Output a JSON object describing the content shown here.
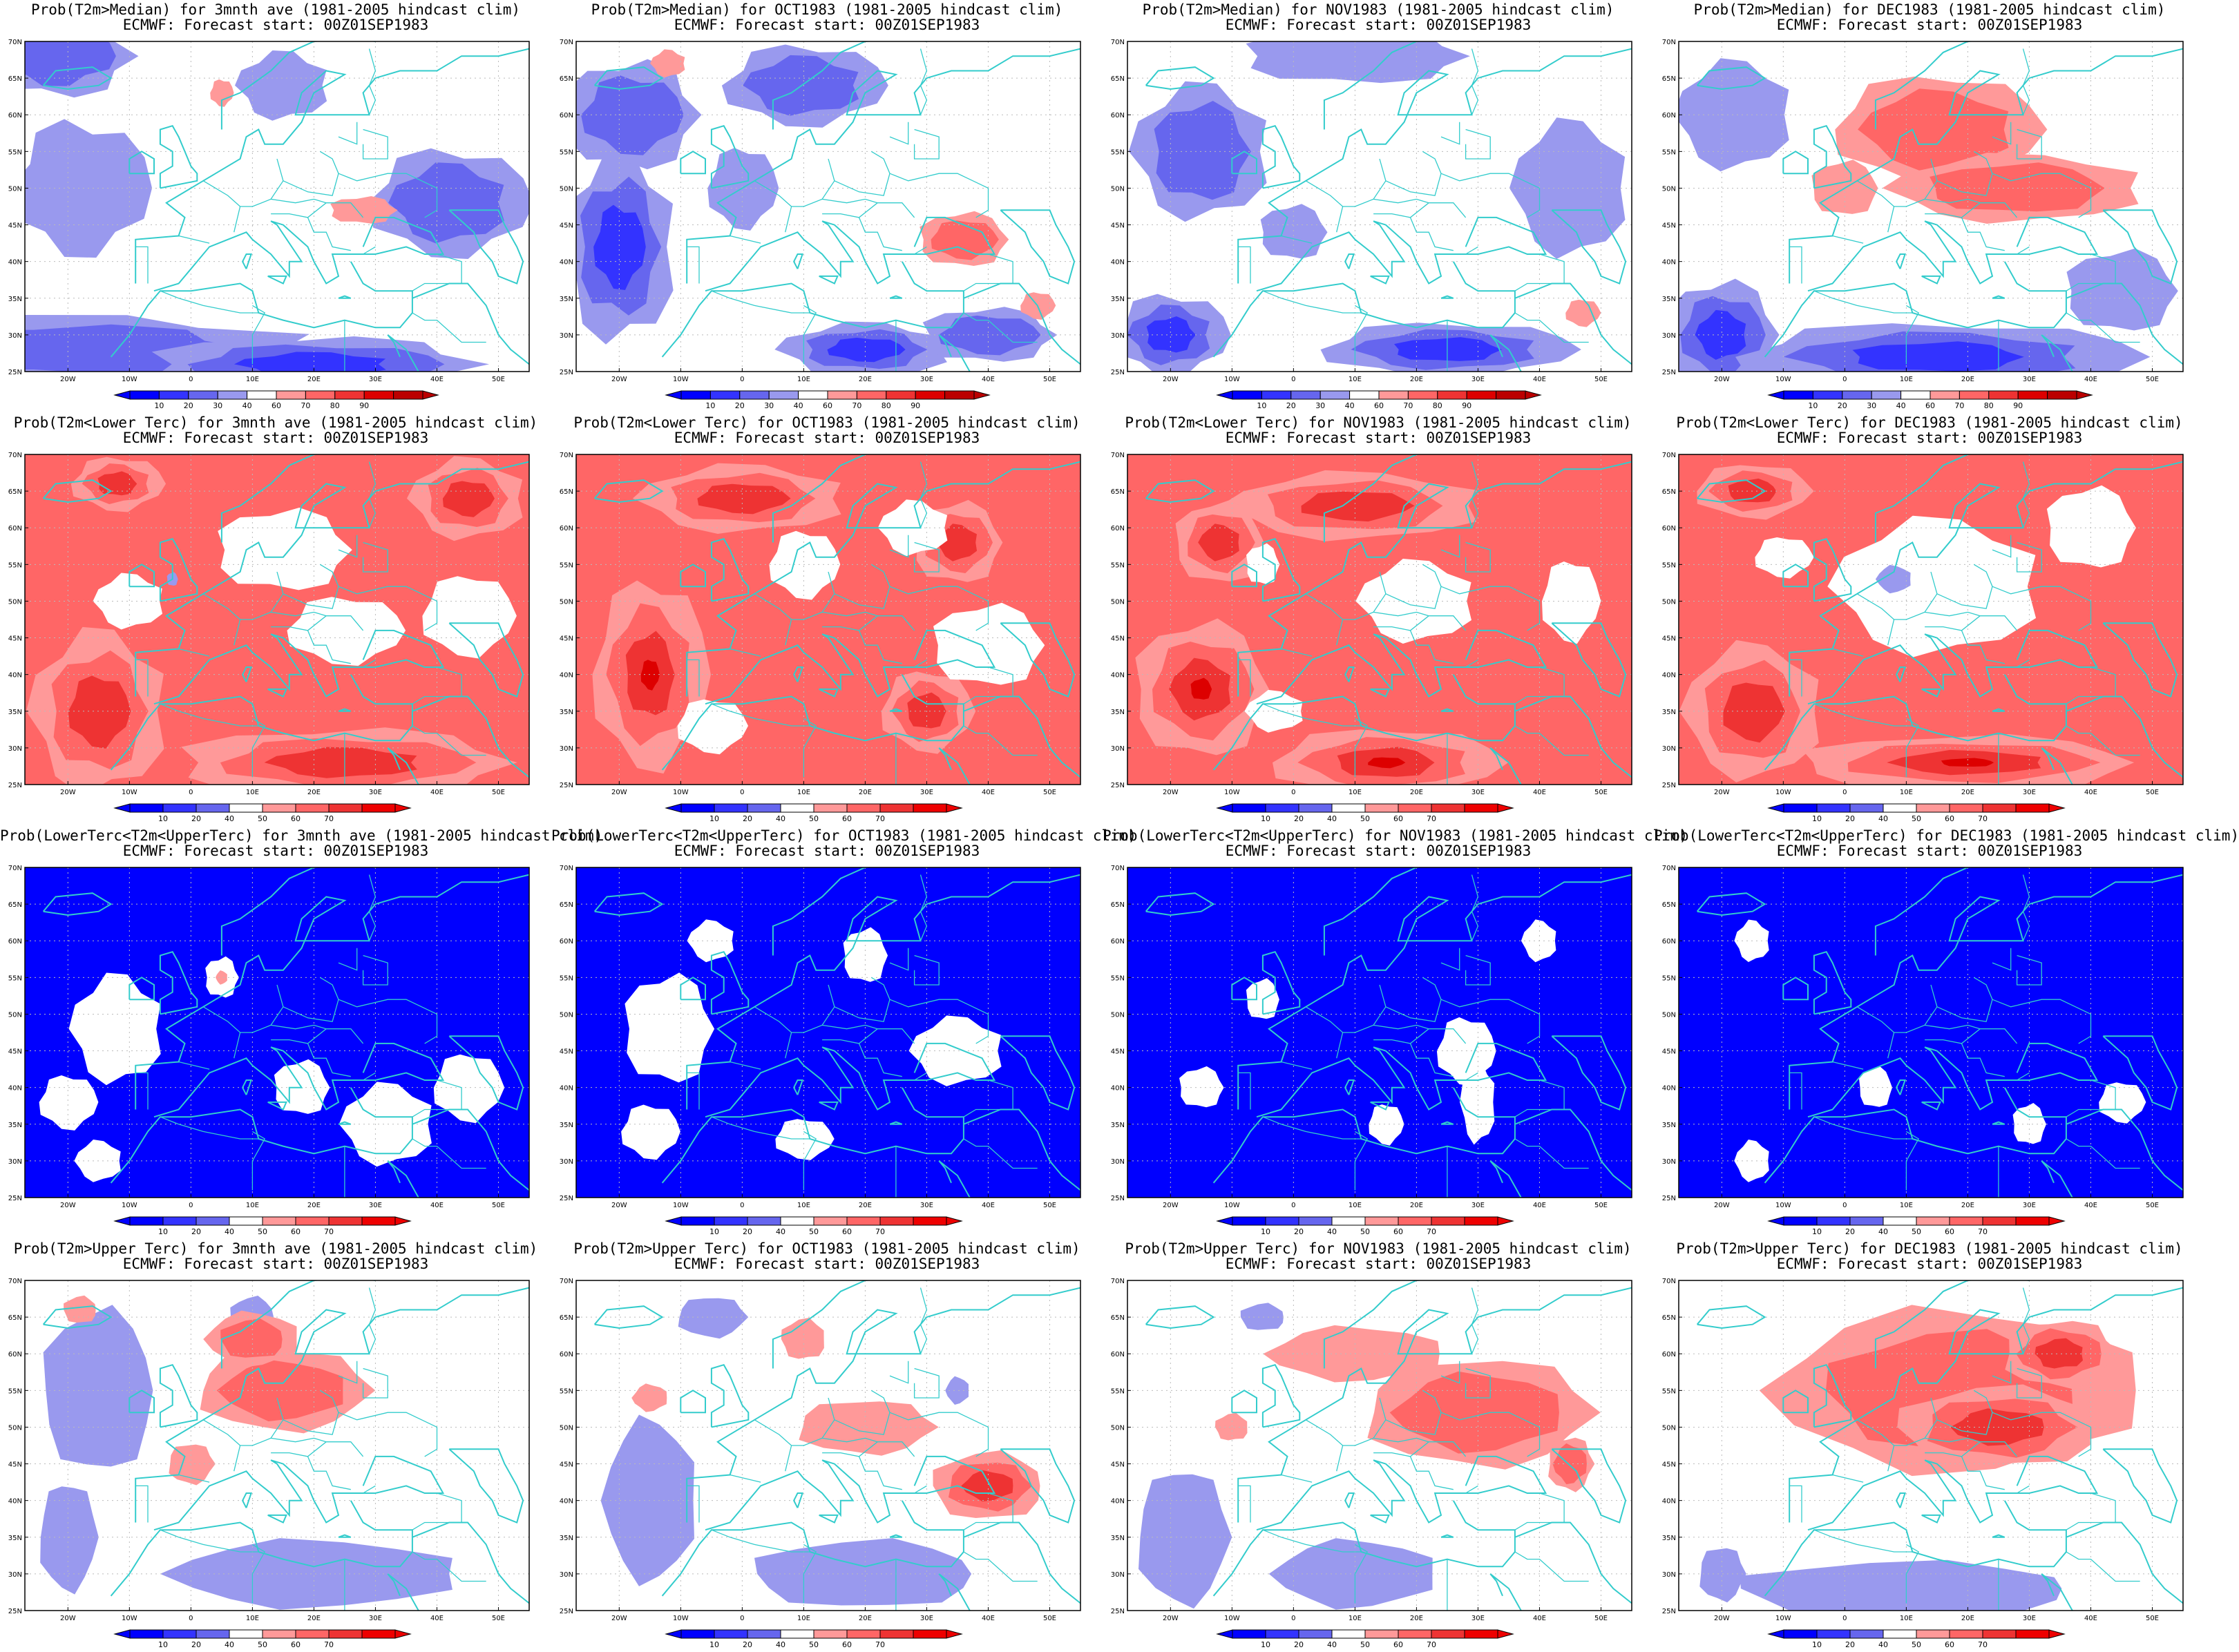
{
  "forecast_line": "ECMWF: Forecast start: 00Z01SEP1983",
  "lat_labels": [
    "70N",
    "65N",
    "60N",
    "55N",
    "50N",
    "45N",
    "40N",
    "35N",
    "30N",
    "25N"
  ],
  "lon_labels": [
    "20W",
    "10W",
    "0",
    "10E",
    "20E",
    "30E",
    "40E",
    "50E"
  ],
  "colorbar_median": [
    "10",
    "20",
    "30",
    "40",
    "60",
    "70",
    "80",
    "90"
  ],
  "colorbar_tercile": [
    "10",
    "20",
    "40",
    "50",
    "60",
    "70"
  ],
  "colors": {
    "blue_levels": [
      "#0000ff",
      "#3333ff",
      "#6666ee",
      "#9999ee"
    ],
    "red_levels": [
      "#ff9999",
      "#ff6666",
      "#ee3333",
      "#dd0000"
    ],
    "coastline": "#33cccc",
    "grid": "#bbbbbb"
  },
  "rows": [
    {
      "type": "median",
      "titles": [
        "Prob(T2m>Median) for 3mnth ave (1981-2005 hindcast clim)",
        "Prob(T2m>Median) for OCT1983 (1981-2005 hindcast clim)",
        "Prob(T2m>Median) for NOV1983 (1981-2005 hindcast clim)",
        "Prob(T2m>Median) for DEC1983 (1981-2005 hindcast clim)"
      ]
    },
    {
      "type": "tercile",
      "titles": [
        "Prob(T2m<Lower Terc) for 3mnth ave (1981-2005 hindcast clim)",
        "Prob(T2m<Lower Terc) for OCT1983 (1981-2005 hindcast clim)",
        "Prob(T2m<Lower Terc) for NOV1983 (1981-2005 hindcast clim)",
        "Prob(T2m<Lower Terc) for DEC1983 (1981-2005 hindcast clim)"
      ]
    },
    {
      "type": "tercile",
      "titles": [
        "Prob(LowerTerc<T2m<UpperTerc) for 3mnth ave (1981-2005 hindcast clim)",
        "Prob(LowerTerc<T2m<UpperTerc) for OCT1983 (1981-2005 hindcast clim)",
        "Prob(LowerTerc<T2m<UpperTerc) for NOV1983 (1981-2005 hindcast clim)",
        "Prob(LowerTerc<T2m<UpperTerc) for DEC1983 (1981-2005 hindcast clim)"
      ]
    },
    {
      "type": "tercile",
      "titles": [
        "Prob(T2m>Upper Terc) for 3mnth ave (1981-2005 hindcast clim)",
        "Prob(T2m>Upper Terc) for OCT1983 (1981-2005 hindcast clim)",
        "Prob(T2m>Upper Terc) for NOV1983 (1981-2005 hindcast clim)",
        "Prob(T2m>Upper Terc) for DEC1983 (1981-2005 hindcast clim)"
      ]
    }
  ],
  "fields": [
    [
      {
        "base": "white",
        "blobs": [
          [
            "blue",
            -22,
            68,
            14,
            6,
            2
          ],
          [
            "blue",
            -18,
            50,
            12,
            10,
            1
          ],
          [
            "blue",
            -20,
            28,
            45,
            5,
            2
          ],
          [
            "blue",
            20,
            26,
            30,
            4,
            3
          ],
          [
            "blue",
            42,
            48,
            14,
            8,
            2
          ],
          [
            "blue",
            15,
            64,
            8,
            5,
            1
          ],
          [
            "red",
            28,
            47,
            6,
            2,
            1
          ],
          [
            "red",
            5,
            63,
            2,
            2,
            1
          ]
        ]
      },
      {
        "base": "white",
        "blobs": [
          [
            "blue",
            -20,
            42,
            10,
            14,
            3
          ],
          [
            "blue",
            -18,
            60,
            12,
            8,
            2
          ],
          [
            "blue",
            10,
            64,
            14,
            6,
            2
          ],
          [
            "blue",
            20,
            28,
            15,
            4,
            3
          ],
          [
            "blue",
            40,
            30,
            12,
            4,
            2
          ],
          [
            "blue",
            0,
            50,
            6,
            6,
            1
          ],
          [
            "red",
            -12,
            67,
            3,
            2,
            1
          ],
          [
            "red",
            36,
            43,
            8,
            4,
            2
          ],
          [
            "red",
            48,
            34,
            3,
            2,
            1
          ]
        ]
      },
      {
        "base": "white",
        "blobs": [
          [
            "blue",
            -20,
            30,
            10,
            6,
            3
          ],
          [
            "blue",
            -15,
            55,
            12,
            10,
            2
          ],
          [
            "blue",
            10,
            68,
            20,
            4,
            1
          ],
          [
            "blue",
            25,
            28,
            22,
            4,
            3
          ],
          [
            "blue",
            45,
            50,
            10,
            10,
            1
          ],
          [
            "blue",
            0,
            44,
            6,
            4,
            1
          ],
          [
            "red",
            47,
            33,
            3,
            2,
            1
          ]
        ]
      },
      {
        "base": "white",
        "blobs": [
          [
            "blue",
            -20,
            30,
            10,
            8,
            3
          ],
          [
            "blue",
            15,
            27,
            35,
            5,
            3
          ],
          [
            "blue",
            -18,
            60,
            10,
            8,
            1
          ],
          [
            "blue",
            45,
            36,
            10,
            6,
            1
          ],
          [
            "red",
            15,
            58,
            18,
            8,
            2
          ],
          [
            "red",
            28,
            50,
            22,
            5,
            2
          ],
          [
            "red",
            0,
            50,
            6,
            4,
            1
          ]
        ]
      }
    ],
    [
      {
        "base": "red2",
        "blobs": [
          [
            "red",
            -15,
            35,
            12,
            12,
            3
          ],
          [
            "red",
            25,
            28,
            30,
            5,
            3
          ],
          [
            "red",
            -12,
            66,
            8,
            4,
            3
          ],
          [
            "red",
            45,
            64,
            10,
            6,
            3
          ],
          [
            "white",
            15,
            57,
            12,
            6,
            0
          ],
          [
            "white",
            25,
            46,
            10,
            5,
            0
          ],
          [
            "white",
            -10,
            50,
            6,
            4,
            0
          ],
          [
            "blue",
            -3,
            53,
            1,
            1,
            1
          ],
          [
            "white",
            45,
            48,
            8,
            6,
            0
          ]
        ]
      },
      {
        "base": "red2",
        "blobs": [
          [
            "red",
            -15,
            40,
            10,
            14,
            4
          ],
          [
            "red",
            0,
            64,
            18,
            5,
            3
          ],
          [
            "red",
            35,
            58,
            8,
            6,
            3
          ],
          [
            "red",
            30,
            35,
            8,
            6,
            3
          ],
          [
            "white",
            10,
            55,
            6,
            5,
            0
          ],
          [
            "white",
            28,
            60,
            6,
            4,
            0
          ],
          [
            "white",
            40,
            44,
            10,
            6,
            0
          ],
          [
            "white",
            -5,
            33,
            6,
            4,
            0
          ]
        ]
      },
      {
        "base": "red2",
        "blobs": [
          [
            "red",
            -15,
            38,
            12,
            10,
            4
          ],
          [
            "red",
            15,
            28,
            20,
            5,
            4
          ],
          [
            "red",
            10,
            63,
            22,
            5,
            3
          ],
          [
            "red",
            -12,
            58,
            8,
            6,
            3
          ],
          [
            "white",
            20,
            50,
            10,
            6,
            0
          ],
          [
            "white",
            -5,
            55,
            3,
            3,
            0
          ],
          [
            "white",
            45,
            50,
            5,
            6,
            0
          ],
          [
            "white",
            -3,
            35,
            5,
            3,
            0
          ]
        ]
      },
      {
        "base": "red2",
        "blobs": [
          [
            "red",
            -15,
            35,
            12,
            10,
            3
          ],
          [
            "red",
            20,
            28,
            30,
            4,
            4
          ],
          [
            "red",
            -15,
            65,
            10,
            4,
            3
          ],
          [
            "white",
            15,
            52,
            18,
            10,
            0
          ],
          [
            "white",
            40,
            60,
            8,
            6,
            0
          ],
          [
            "white",
            -10,
            56,
            5,
            3,
            0
          ],
          [
            "blue",
            8,
            53,
            3,
            2,
            1
          ]
        ]
      }
    ],
    [
      {
        "base": "blue",
        "blobs": [
          [
            "white",
            -12,
            48,
            8,
            8,
            0
          ],
          [
            "white",
            5,
            55,
            3,
            3,
            0
          ],
          [
            "white",
            -20,
            38,
            5,
            4,
            0
          ],
          [
            "white",
            32,
            35,
            8,
            6,
            0
          ],
          [
            "white",
            18,
            40,
            5,
            4,
            0
          ],
          [
            "white",
            45,
            40,
            6,
            5,
            0
          ],
          [
            "white",
            -15,
            30,
            4,
            3,
            0
          ],
          [
            "red",
            5,
            55,
            1,
            1,
            1
          ]
        ]
      },
      {
        "base": "blue",
        "blobs": [
          [
            "white",
            -12,
            48,
            8,
            8,
            0
          ],
          [
            "white",
            -15,
            34,
            5,
            4,
            0
          ],
          [
            "white",
            35,
            45,
            8,
            5,
            0
          ],
          [
            "white",
            20,
            58,
            4,
            4,
            0
          ],
          [
            "white",
            10,
            33,
            5,
            3,
            0
          ],
          [
            "white",
            -5,
            60,
            4,
            3,
            0
          ]
        ]
      },
      {
        "base": "blue",
        "blobs": [
          [
            "white",
            28,
            45,
            5,
            5,
            0
          ],
          [
            "white",
            30,
            38,
            3,
            6,
            0
          ],
          [
            "white",
            -15,
            40,
            4,
            3,
            0
          ],
          [
            "white",
            15,
            35,
            3,
            3,
            0
          ],
          [
            "white",
            40,
            60,
            3,
            3,
            0
          ],
          [
            "white",
            -5,
            52,
            3,
            3,
            0
          ]
        ]
      },
      {
        "base": "blue",
        "blobs": [
          [
            "white",
            -15,
            60,
            3,
            3,
            0
          ],
          [
            "white",
            30,
            35,
            3,
            3,
            0
          ],
          [
            "white",
            45,
            38,
            4,
            3,
            0
          ],
          [
            "white",
            -15,
            30,
            3,
            3,
            0
          ],
          [
            "white",
            5,
            40,
            3,
            3,
            0
          ]
        ]
      }
    ],
    [
      {
        "base": "white",
        "blobs": [
          [
            "blue",
            -15,
            55,
            10,
            12,
            1
          ],
          [
            "blue",
            -20,
            35,
            5,
            8,
            1
          ],
          [
            "blue",
            20,
            30,
            25,
            5,
            1
          ],
          [
            "blue",
            10,
            65,
            4,
            3,
            1
          ],
          [
            "red",
            15,
            55,
            15,
            6,
            2
          ],
          [
            "red",
            10,
            62,
            8,
            4,
            2
          ],
          [
            "red",
            -18,
            66,
            3,
            2,
            1
          ],
          [
            "red",
            0,
            45,
            4,
            3,
            1
          ]
        ]
      },
      {
        "base": "white",
        "blobs": [
          [
            "blue",
            -15,
            40,
            8,
            12,
            1
          ],
          [
            "blue",
            20,
            30,
            20,
            5,
            1
          ],
          [
            "blue",
            -5,
            65,
            6,
            3,
            1
          ],
          [
            "blue",
            35,
            55,
            2,
            2,
            1
          ],
          [
            "red",
            40,
            42,
            10,
            5,
            3
          ],
          [
            "red",
            20,
            50,
            12,
            4,
            1
          ],
          [
            "red",
            -15,
            54,
            3,
            2,
            1
          ],
          [
            "red",
            10,
            62,
            4,
            3,
            1
          ]
        ]
      },
      {
        "base": "white",
        "blobs": [
          [
            "blue",
            -18,
            35,
            8,
            10,
            1
          ],
          [
            "blue",
            10,
            30,
            14,
            5,
            1
          ],
          [
            "blue",
            -5,
            65,
            4,
            2,
            1
          ],
          [
            "red",
            30,
            52,
            20,
            8,
            2
          ],
          [
            "red",
            10,
            60,
            15,
            4,
            1
          ],
          [
            "red",
            -10,
            50,
            3,
            2,
            1
          ],
          [
            "red",
            45,
            45,
            4,
            4,
            2
          ]
        ]
      },
      {
        "base": "white",
        "blobs": [
          [
            "blue",
            10,
            28,
            30,
            4,
            1
          ],
          [
            "blue",
            -20,
            30,
            4,
            4,
            1
          ],
          [
            "red",
            18,
            55,
            32,
            12,
            2
          ],
          [
            "red",
            25,
            50,
            18,
            6,
            3
          ],
          [
            "red",
            35,
            60,
            10,
            5,
            3
          ]
        ]
      }
    ]
  ]
}
